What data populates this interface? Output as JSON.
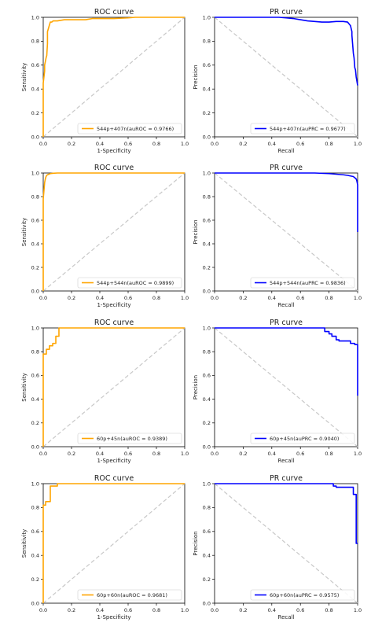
{
  "colors": {
    "roc_line": "#FFA500",
    "pr_line": "#0000FF",
    "diagonal": "#C8C8C8",
    "axis": "#000000"
  },
  "chart_data": [
    {
      "type": "line",
      "title": "ROC curve",
      "xlabel": "1-Specificity",
      "ylabel": "Sensitivity",
      "xlim": [
        0,
        1
      ],
      "ylim": [
        0,
        1
      ],
      "xticks": [
        "0.0",
        "0.2",
        "0.4",
        "0.6",
        "0.8",
        "1.0"
      ],
      "yticks": [
        "0.0",
        "0.2",
        "0.4",
        "0.6",
        "0.8",
        "1.0"
      ],
      "legend": "bottom-right",
      "series": [
        {
          "name": "544p+407n(auROC = 0.9766)",
          "color": "#FFA500",
          "x": [
            0,
            0,
            0.01,
            0.01,
            0.02,
            0.025,
            0.03,
            0.03,
            0.04,
            0.045,
            0.05,
            0.06,
            0.07,
            0.1,
            0.15,
            0.2,
            0.3,
            0.35,
            0.4,
            0.5,
            0.6,
            0.65,
            1.0
          ],
          "y": [
            0,
            0.45,
            0.55,
            0.6,
            0.66,
            0.68,
            0.78,
            0.88,
            0.92,
            0.94,
            0.96,
            0.96,
            0.97,
            0.97,
            0.98,
            0.98,
            0.98,
            0.99,
            0.99,
            0.99,
            0.995,
            1.0,
            1.0
          ]
        }
      ],
      "baseline": {
        "x": [
          0,
          1
        ],
        "y": [
          0,
          1
        ]
      }
    },
    {
      "type": "line",
      "title": "PR curve",
      "xlabel": "Recall",
      "ylabel": "Precision",
      "xlim": [
        0,
        1
      ],
      "ylim": [
        0,
        1
      ],
      "xticks": [
        "0.0",
        "0.2",
        "0.4",
        "0.6",
        "0.8",
        "1.0"
      ],
      "yticks": [
        "0.0",
        "0.2",
        "0.4",
        "0.6",
        "0.8",
        "1.0"
      ],
      "legend": "bottom-right",
      "series": [
        {
          "name": "544p+407n(auPRC = 0.9677)",
          "color": "#0000FF",
          "x": [
            0,
            0.45,
            0.5,
            0.55,
            0.6,
            0.65,
            0.7,
            0.75,
            0.8,
            0.85,
            0.9,
            0.93,
            0.95,
            0.96,
            0.96,
            0.97,
            0.975,
            0.98,
            0.985,
            0.99,
            1.0
          ],
          "y": [
            1.0,
            1.0,
            0.995,
            0.99,
            0.98,
            0.97,
            0.965,
            0.96,
            0.96,
            0.965,
            0.965,
            0.96,
            0.93,
            0.88,
            0.85,
            0.7,
            0.66,
            0.58,
            0.56,
            0.5,
            0.43
          ]
        }
      ],
      "baseline": {
        "x": [
          0,
          1
        ],
        "y": [
          1,
          0
        ]
      }
    },
    {
      "type": "line",
      "title": "ROC curve",
      "xlabel": "1-Specificity",
      "ylabel": "Sensitivity",
      "xlim": [
        0,
        1
      ],
      "ylim": [
        0,
        1
      ],
      "xticks": [
        "0.0",
        "0.2",
        "0.4",
        "0.6",
        "0.8",
        "1.0"
      ],
      "yticks": [
        "0.0",
        "0.2",
        "0.4",
        "0.6",
        "0.8",
        "1.0"
      ],
      "legend": "bottom-right",
      "series": [
        {
          "name": "544p+544n(auROC = 0.9899)",
          "color": "#FFA500",
          "x": [
            0,
            0,
            0.005,
            0.01,
            0.015,
            0.02,
            0.025,
            0.03,
            0.04,
            0.05,
            0.07,
            0.1,
            0.2,
            1.0
          ],
          "y": [
            0,
            0.78,
            0.85,
            0.92,
            0.95,
            0.97,
            0.98,
            0.985,
            0.99,
            0.995,
            0.998,
            1.0,
            1.0,
            1.0
          ]
        }
      ],
      "baseline": {
        "x": [
          0,
          1
        ],
        "y": [
          0,
          1
        ]
      }
    },
    {
      "type": "line",
      "title": "PR curve",
      "xlabel": "Recall",
      "ylabel": "Precision",
      "xlim": [
        0,
        1
      ],
      "ylim": [
        0,
        1
      ],
      "xticks": [
        "0.0",
        "0.2",
        "0.4",
        "0.6",
        "0.8",
        "1.0"
      ],
      "yticks": [
        "0.0",
        "0.2",
        "0.4",
        "0.6",
        "0.8",
        "1.0"
      ],
      "legend": "bottom-right",
      "series": [
        {
          "name": "544p+544n(auPRC = 0.9836)",
          "color": "#0000FF",
          "x": [
            0,
            0.5,
            0.7,
            0.8,
            0.85,
            0.9,
            0.93,
            0.95,
            0.97,
            0.98,
            0.99,
            0.995,
            1.0,
            1.0
          ],
          "y": [
            1.0,
            1.0,
            1.0,
            0.995,
            0.99,
            0.985,
            0.98,
            0.975,
            0.97,
            0.96,
            0.95,
            0.93,
            0.9,
            0.5
          ]
        }
      ],
      "baseline": {
        "x": [
          0,
          1
        ],
        "y": [
          1,
          0
        ]
      }
    },
    {
      "type": "line",
      "title": "ROC curve",
      "xlabel": "1-Specificity",
      "ylabel": "Sensitivity",
      "xlim": [
        0,
        1
      ],
      "ylim": [
        0,
        1
      ],
      "xticks": [
        "0.0",
        "0.2",
        "0.4",
        "0.6",
        "0.8",
        "1.0"
      ],
      "yticks": [
        "0.0",
        "0.2",
        "0.4",
        "0.6",
        "0.8",
        "1.0"
      ],
      "legend": "bottom-right",
      "series": [
        {
          "name": "60p+45n(auROC = 0.9389)",
          "color": "#FFA500",
          "x": [
            0,
            0,
            0.022,
            0.022,
            0.044,
            0.044,
            0.067,
            0.067,
            0.089,
            0.089,
            0.111,
            0.111,
            1.0
          ],
          "y": [
            0,
            0.78,
            0.78,
            0.82,
            0.82,
            0.85,
            0.85,
            0.87,
            0.87,
            0.93,
            0.93,
            1.0,
            1.0
          ]
        }
      ],
      "baseline": {
        "x": [
          0,
          1
        ],
        "y": [
          0,
          1
        ]
      }
    },
    {
      "type": "line",
      "title": "PR curve",
      "xlabel": "Recall",
      "ylabel": "Precision",
      "xlim": [
        0,
        1
      ],
      "ylim": [
        0,
        1
      ],
      "xticks": [
        "0.0",
        "0.2",
        "0.4",
        "0.6",
        "0.8",
        "1.0"
      ],
      "yticks": [
        "0.0",
        "0.2",
        "0.4",
        "0.6",
        "0.8",
        "1.0"
      ],
      "legend": "bottom-right",
      "series": [
        {
          "name": "60p+45n(auPRC = 0.9040)",
          "color": "#0000FF",
          "x": [
            0,
            0.77,
            0.77,
            0.8,
            0.8,
            0.82,
            0.82,
            0.85,
            0.85,
            0.87,
            0.87,
            0.9,
            0.93,
            0.95,
            0.95,
            0.98,
            0.98,
            1.0,
            1.0
          ],
          "y": [
            1.0,
            1.0,
            0.97,
            0.97,
            0.95,
            0.95,
            0.93,
            0.93,
            0.9,
            0.9,
            0.89,
            0.89,
            0.89,
            0.89,
            0.87,
            0.87,
            0.86,
            0.86,
            0.43
          ]
        }
      ],
      "baseline": {
        "x": [
          0,
          1
        ],
        "y": [
          1,
          0
        ]
      }
    },
    {
      "type": "line",
      "title": "ROC curve",
      "xlabel": "1-Specificity",
      "ylabel": "Sensitivity",
      "xlim": [
        0,
        1
      ],
      "ylim": [
        0,
        1
      ],
      "xticks": [
        "0.0",
        "0.2",
        "0.4",
        "0.6",
        "0.8",
        "1.0"
      ],
      "yticks": [
        "0.0",
        "0.2",
        "0.4",
        "0.6",
        "0.8",
        "1.0"
      ],
      "legend": "bottom-right",
      "series": [
        {
          "name": "60p+60n(auROC = 0.9681)",
          "color": "#FFA500",
          "x": [
            0,
            0,
            0.017,
            0.017,
            0.05,
            0.05,
            0.1,
            0.1,
            1.0
          ],
          "y": [
            0,
            0.82,
            0.82,
            0.85,
            0.85,
            0.98,
            0.98,
            1.0,
            1.0
          ]
        }
      ],
      "baseline": {
        "x": [
          0,
          1
        ],
        "y": [
          0,
          1
        ]
      }
    },
    {
      "type": "line",
      "title": "PR curve",
      "xlabel": "Recall",
      "ylabel": "Precision",
      "xlim": [
        0,
        1
      ],
      "ylim": [
        0,
        1
      ],
      "xticks": [
        "0.0",
        "0.2",
        "0.4",
        "0.6",
        "0.8",
        "1.0"
      ],
      "yticks": [
        "0.0",
        "0.2",
        "0.4",
        "0.6",
        "0.8",
        "1.0"
      ],
      "legend": "bottom-right",
      "series": [
        {
          "name": "60p+60n(auPRC = 0.9575)",
          "color": "#0000FF",
          "x": [
            0,
            0.83,
            0.83,
            0.85,
            0.85,
            0.97,
            0.97,
            0.99,
            0.99,
            1.0
          ],
          "y": [
            1.0,
            1.0,
            0.98,
            0.98,
            0.97,
            0.97,
            0.91,
            0.91,
            0.5,
            0.5
          ]
        }
      ],
      "baseline": {
        "x": [
          0,
          1
        ],
        "y": [
          1,
          0
        ]
      }
    }
  ]
}
